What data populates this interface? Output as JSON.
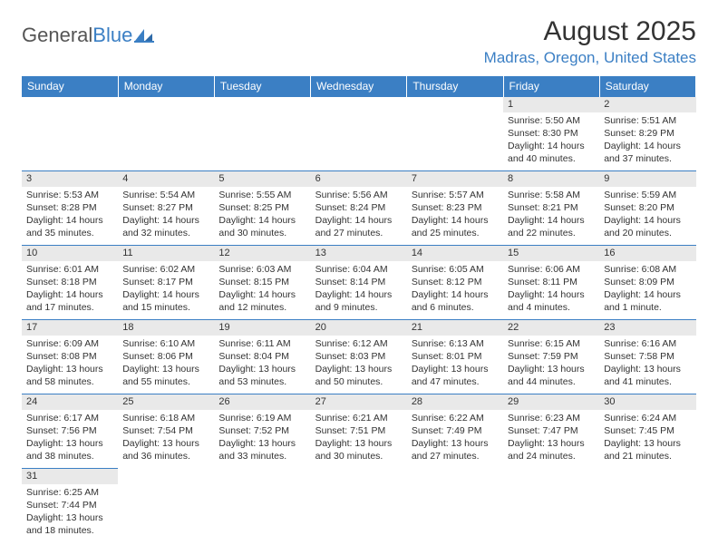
{
  "logo": {
    "text1": "General",
    "text2": "Blue"
  },
  "title": "August 2025",
  "location": "Madras, Oregon, United States",
  "weekdays": [
    "Sunday",
    "Monday",
    "Tuesday",
    "Wednesday",
    "Thursday",
    "Friday",
    "Saturday"
  ],
  "colors": {
    "accent": "#3b7fc4",
    "daynum_bg": "#e9e9e9",
    "text": "#333333",
    "bg": "#ffffff"
  },
  "grid": [
    [
      null,
      null,
      null,
      null,
      null,
      {
        "n": "1",
        "sr": "Sunrise: 5:50 AM",
        "ss": "Sunset: 8:30 PM",
        "d1": "Daylight: 14 hours",
        "d2": "and 40 minutes."
      },
      {
        "n": "2",
        "sr": "Sunrise: 5:51 AM",
        "ss": "Sunset: 8:29 PM",
        "d1": "Daylight: 14 hours",
        "d2": "and 37 minutes."
      }
    ],
    [
      {
        "n": "3",
        "sr": "Sunrise: 5:53 AM",
        "ss": "Sunset: 8:28 PM",
        "d1": "Daylight: 14 hours",
        "d2": "and 35 minutes."
      },
      {
        "n": "4",
        "sr": "Sunrise: 5:54 AM",
        "ss": "Sunset: 8:27 PM",
        "d1": "Daylight: 14 hours",
        "d2": "and 32 minutes."
      },
      {
        "n": "5",
        "sr": "Sunrise: 5:55 AM",
        "ss": "Sunset: 8:25 PM",
        "d1": "Daylight: 14 hours",
        "d2": "and 30 minutes."
      },
      {
        "n": "6",
        "sr": "Sunrise: 5:56 AM",
        "ss": "Sunset: 8:24 PM",
        "d1": "Daylight: 14 hours",
        "d2": "and 27 minutes."
      },
      {
        "n": "7",
        "sr": "Sunrise: 5:57 AM",
        "ss": "Sunset: 8:23 PM",
        "d1": "Daylight: 14 hours",
        "d2": "and 25 minutes."
      },
      {
        "n": "8",
        "sr": "Sunrise: 5:58 AM",
        "ss": "Sunset: 8:21 PM",
        "d1": "Daylight: 14 hours",
        "d2": "and 22 minutes."
      },
      {
        "n": "9",
        "sr": "Sunrise: 5:59 AM",
        "ss": "Sunset: 8:20 PM",
        "d1": "Daylight: 14 hours",
        "d2": "and 20 minutes."
      }
    ],
    [
      {
        "n": "10",
        "sr": "Sunrise: 6:01 AM",
        "ss": "Sunset: 8:18 PM",
        "d1": "Daylight: 14 hours",
        "d2": "and 17 minutes."
      },
      {
        "n": "11",
        "sr": "Sunrise: 6:02 AM",
        "ss": "Sunset: 8:17 PM",
        "d1": "Daylight: 14 hours",
        "d2": "and 15 minutes."
      },
      {
        "n": "12",
        "sr": "Sunrise: 6:03 AM",
        "ss": "Sunset: 8:15 PM",
        "d1": "Daylight: 14 hours",
        "d2": "and 12 minutes."
      },
      {
        "n": "13",
        "sr": "Sunrise: 6:04 AM",
        "ss": "Sunset: 8:14 PM",
        "d1": "Daylight: 14 hours",
        "d2": "and 9 minutes."
      },
      {
        "n": "14",
        "sr": "Sunrise: 6:05 AM",
        "ss": "Sunset: 8:12 PM",
        "d1": "Daylight: 14 hours",
        "d2": "and 6 minutes."
      },
      {
        "n": "15",
        "sr": "Sunrise: 6:06 AM",
        "ss": "Sunset: 8:11 PM",
        "d1": "Daylight: 14 hours",
        "d2": "and 4 minutes."
      },
      {
        "n": "16",
        "sr": "Sunrise: 6:08 AM",
        "ss": "Sunset: 8:09 PM",
        "d1": "Daylight: 14 hours",
        "d2": "and 1 minute."
      }
    ],
    [
      {
        "n": "17",
        "sr": "Sunrise: 6:09 AM",
        "ss": "Sunset: 8:08 PM",
        "d1": "Daylight: 13 hours",
        "d2": "and 58 minutes."
      },
      {
        "n": "18",
        "sr": "Sunrise: 6:10 AM",
        "ss": "Sunset: 8:06 PM",
        "d1": "Daylight: 13 hours",
        "d2": "and 55 minutes."
      },
      {
        "n": "19",
        "sr": "Sunrise: 6:11 AM",
        "ss": "Sunset: 8:04 PM",
        "d1": "Daylight: 13 hours",
        "d2": "and 53 minutes."
      },
      {
        "n": "20",
        "sr": "Sunrise: 6:12 AM",
        "ss": "Sunset: 8:03 PM",
        "d1": "Daylight: 13 hours",
        "d2": "and 50 minutes."
      },
      {
        "n": "21",
        "sr": "Sunrise: 6:13 AM",
        "ss": "Sunset: 8:01 PM",
        "d1": "Daylight: 13 hours",
        "d2": "and 47 minutes."
      },
      {
        "n": "22",
        "sr": "Sunrise: 6:15 AM",
        "ss": "Sunset: 7:59 PM",
        "d1": "Daylight: 13 hours",
        "d2": "and 44 minutes."
      },
      {
        "n": "23",
        "sr": "Sunrise: 6:16 AM",
        "ss": "Sunset: 7:58 PM",
        "d1": "Daylight: 13 hours",
        "d2": "and 41 minutes."
      }
    ],
    [
      {
        "n": "24",
        "sr": "Sunrise: 6:17 AM",
        "ss": "Sunset: 7:56 PM",
        "d1": "Daylight: 13 hours",
        "d2": "and 38 minutes."
      },
      {
        "n": "25",
        "sr": "Sunrise: 6:18 AM",
        "ss": "Sunset: 7:54 PM",
        "d1": "Daylight: 13 hours",
        "d2": "and 36 minutes."
      },
      {
        "n": "26",
        "sr": "Sunrise: 6:19 AM",
        "ss": "Sunset: 7:52 PM",
        "d1": "Daylight: 13 hours",
        "d2": "and 33 minutes."
      },
      {
        "n": "27",
        "sr": "Sunrise: 6:21 AM",
        "ss": "Sunset: 7:51 PM",
        "d1": "Daylight: 13 hours",
        "d2": "and 30 minutes."
      },
      {
        "n": "28",
        "sr": "Sunrise: 6:22 AM",
        "ss": "Sunset: 7:49 PM",
        "d1": "Daylight: 13 hours",
        "d2": "and 27 minutes."
      },
      {
        "n": "29",
        "sr": "Sunrise: 6:23 AM",
        "ss": "Sunset: 7:47 PM",
        "d1": "Daylight: 13 hours",
        "d2": "and 24 minutes."
      },
      {
        "n": "30",
        "sr": "Sunrise: 6:24 AM",
        "ss": "Sunset: 7:45 PM",
        "d1": "Daylight: 13 hours",
        "d2": "and 21 minutes."
      }
    ],
    [
      {
        "n": "31",
        "sr": "Sunrise: 6:25 AM",
        "ss": "Sunset: 7:44 PM",
        "d1": "Daylight: 13 hours",
        "d2": "and 18 minutes."
      },
      null,
      null,
      null,
      null,
      null,
      null
    ]
  ]
}
